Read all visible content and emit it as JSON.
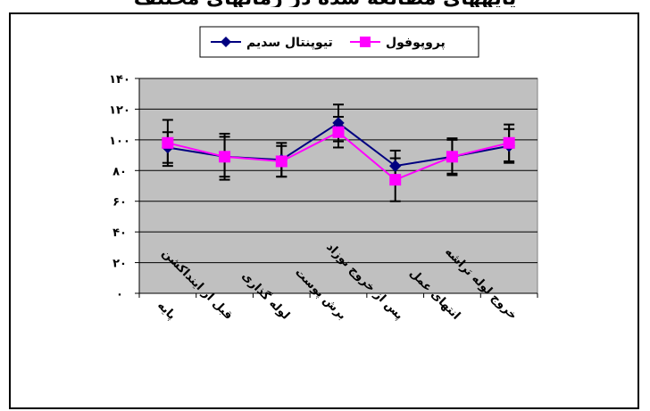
{
  "header_fragment": "یایههاى مطالعه شده در زمانهای مختلف",
  "chart_data": {
    "type": "line",
    "title": "",
    "xlabel": "",
    "ylabel": "",
    "ylim": [
      0,
      140
    ],
    "yticks": [
      0,
      20,
      40,
      60,
      80,
      100,
      120,
      140
    ],
    "ytick_labels": [
      "٠",
      "۲٠",
      "۴٠",
      "۶٠",
      "۸٠",
      "۱٠٠",
      "۱۲٠",
      "۱۴٠"
    ],
    "grid": "horizontal",
    "legend_position": "top",
    "plot_background": "#c0c0c0",
    "categories": [
      "پایه",
      "قبل از اینداکشن",
      "لوله گذاری",
      "برش پوست",
      "پس از خروج نوزاد",
      "انتهای عمل",
      "خروج لوله تراشه"
    ],
    "series": [
      {
        "name": "تیوپنتال سدیم",
        "color": "#000080",
        "marker": "diamond",
        "values": [
          95,
          89,
          87,
          111,
          83,
          89,
          96
        ],
        "error": [
          10,
          13,
          11,
          12,
          10,
          12,
          11
        ]
      },
      {
        "name": "پروپوفول",
        "color": "#ff00ff",
        "marker": "square",
        "values": [
          98,
          89,
          86,
          105,
          74,
          89,
          98
        ],
        "error": [
          15,
          15,
          10,
          10,
          14,
          11,
          12
        ]
      }
    ]
  }
}
